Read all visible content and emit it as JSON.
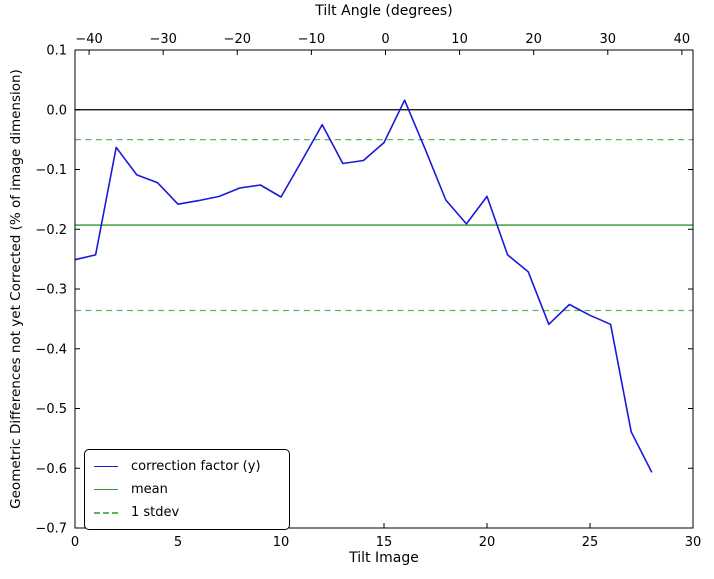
{
  "figure": {
    "background": "#ffffff",
    "axes_background": "#ffffff",
    "text_color": "#000000"
  },
  "chart_data": {
    "type": "line",
    "top_axis": {
      "label": "Tilt Angle (degrees)",
      "min": -41.9,
      "max": 41.5,
      "ticks": [
        -40,
        -30,
        -20,
        -10,
        0,
        10,
        20,
        30,
        40
      ],
      "tick_labels": [
        "−40",
        "−30",
        "−20",
        "−10",
        "0",
        "10",
        "20",
        "30",
        "40"
      ]
    },
    "bottom_axis": {
      "label": "Tilt Image",
      "min": 0,
      "max": 30,
      "ticks": [
        0,
        5,
        10,
        15,
        20,
        25,
        30
      ],
      "tick_labels": [
        "0",
        "5",
        "10",
        "15",
        "20",
        "25",
        "30"
      ]
    },
    "left_axis": {
      "label": "Geometric Differences not yet Corrected (% of image dimension)",
      "min": -0.7,
      "max": 0.1,
      "ticks": [
        0.1,
        0.0,
        -0.1,
        -0.2,
        -0.3,
        -0.4,
        -0.5,
        -0.6,
        -0.7
      ],
      "tick_labels": [
        "0.1",
        "0.0",
        "−0.1",
        "−0.2",
        "−0.3",
        "−0.4",
        "−0.5",
        "−0.6",
        "−0.7"
      ]
    },
    "zero_line": {
      "value": 0.0,
      "color": "#000000"
    },
    "series": [
      {
        "name": "correction factor (y)",
        "kind": "line",
        "color": "#1a1ad9",
        "style": "solid",
        "x": [
          0,
          1,
          2,
          3,
          4,
          5,
          6,
          7,
          8,
          9,
          10,
          11,
          12,
          13,
          14,
          15,
          16,
          17,
          18,
          19,
          20,
          21,
          22,
          23,
          24,
          25,
          26,
          27,
          28
        ],
        "y": [
          -0.251,
          -0.243,
          -0.063,
          -0.109,
          -0.122,
          -0.158,
          -0.152,
          -0.145,
          -0.131,
          -0.126,
          -0.146,
          -0.086,
          -0.025,
          -0.09,
          -0.085,
          -0.055,
          0.016,
          -0.066,
          -0.151,
          -0.191,
          -0.145,
          -0.243,
          -0.271,
          -0.359,
          -0.326,
          -0.344,
          -0.359,
          -0.539,
          -0.607
        ]
      },
      {
        "name": "mean",
        "kind": "hline",
        "color": "#2e9b2e",
        "style": "solid",
        "values": [
          -0.193
        ]
      },
      {
        "name": "1 stdev",
        "kind": "hline",
        "color": "#5db55d",
        "style": "dashed",
        "values": [
          -0.05,
          -0.336
        ]
      }
    ],
    "legend": {
      "position": "lower left"
    }
  }
}
